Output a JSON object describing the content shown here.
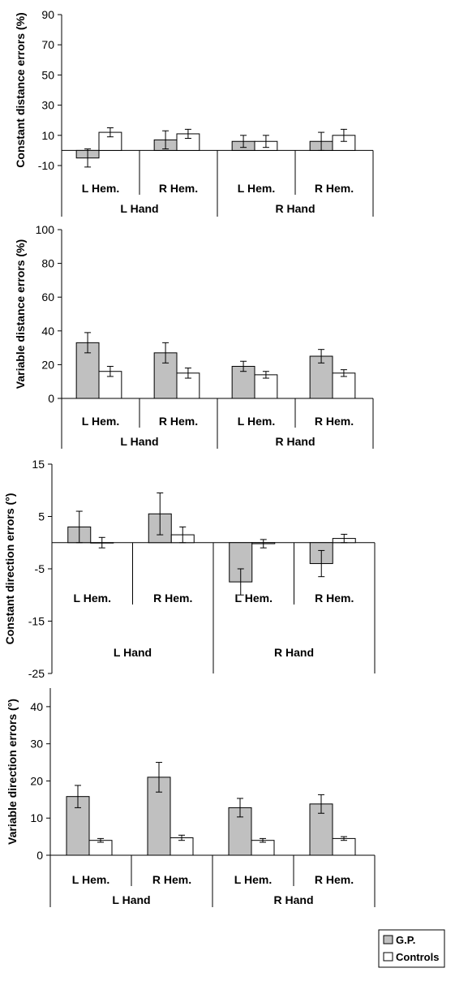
{
  "legend": {
    "entries": [
      {
        "name": "G.P.",
        "color": "#c0c0c0"
      },
      {
        "name": "Controls",
        "color": "#ffffff"
      }
    ]
  },
  "chart_data": [
    {
      "type": "bar",
      "ylabel": "Constant distance errors (%)",
      "ylim": [
        -10,
        90
      ],
      "yticks": [
        90,
        70,
        50,
        30,
        10,
        -10
      ],
      "groups": [
        "L Hand",
        "R Hand"
      ],
      "categories": [
        "L Hem.",
        "R Hem.",
        "L Hem.",
        "R Hem."
      ],
      "series": [
        {
          "name": "G.P.",
          "values": [
            -5,
            7,
            6,
            6
          ],
          "errors": [
            6,
            6,
            4,
            6
          ]
        },
        {
          "name": "Controls",
          "values": [
            12,
            11,
            6,
            10
          ],
          "errors": [
            3,
            3,
            4,
            4
          ]
        }
      ]
    },
    {
      "type": "bar",
      "ylabel": "Variable distance errors (%)",
      "ylim": [
        0,
        100
      ],
      "yticks": [
        100,
        80,
        60,
        40,
        20,
        0
      ],
      "groups": [
        "L Hand",
        "R Hand"
      ],
      "categories": [
        "L Hem.",
        "R Hem.",
        "L Hem.",
        "R Hem."
      ],
      "series": [
        {
          "name": "G.P.",
          "values": [
            33,
            27,
            19,
            25
          ],
          "errors": [
            6,
            6,
            3,
            4
          ]
        },
        {
          "name": "Controls",
          "values": [
            16,
            15,
            14,
            15
          ],
          "errors": [
            3,
            3,
            2,
            2
          ]
        }
      ]
    },
    {
      "type": "bar",
      "ylabel": "Constant direction errors (°)",
      "ylim": [
        -25,
        15
      ],
      "yticks": [
        15,
        5,
        -5,
        -15,
        -25
      ],
      "groups": [
        "L Hand",
        "R Hand"
      ],
      "categories": [
        "L Hem.",
        "R Hem.",
        "L Hem.",
        "R Hem."
      ],
      "series": [
        {
          "name": "G.P.",
          "values": [
            3,
            5.5,
            -7.5,
            -4
          ],
          "errors": [
            3,
            4,
            2.5,
            2.5
          ]
        },
        {
          "name": "Controls",
          "values": [
            0,
            1.5,
            -0.2,
            0.8
          ],
          "errors": [
            1,
            1.5,
            0.8,
            0.8
          ]
        }
      ]
    },
    {
      "type": "bar",
      "ylabel": "Variable direction errors (°)",
      "ylim": [
        0,
        45
      ],
      "yticks": [
        40,
        30,
        20,
        10,
        0
      ],
      "groups": [
        "L Hand",
        "R Hand"
      ],
      "categories": [
        "L Hem.",
        "R Hem.",
        "L Hem.",
        "R Hem."
      ],
      "series": [
        {
          "name": "G.P.",
          "values": [
            15.8,
            21,
            12.8,
            13.8
          ],
          "errors": [
            3,
            4,
            2.5,
            2.5
          ]
        },
        {
          "name": "Controls",
          "values": [
            4,
            4.7,
            4,
            4.5
          ],
          "errors": [
            0.5,
            0.7,
            0.5,
            0.5
          ]
        }
      ]
    }
  ]
}
